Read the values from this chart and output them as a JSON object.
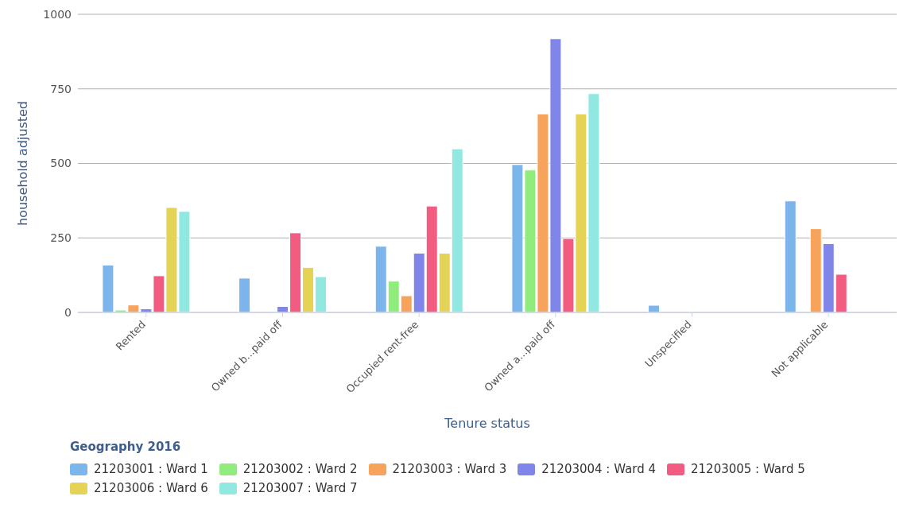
{
  "chart_data": {
    "type": "bar",
    "xlabel": "Tenure status",
    "ylabel": "household adjusted",
    "legend_title": "Geography 2016",
    "legend": "bottom",
    "grid": "y",
    "categories": [
      "Rented",
      "Owned b...paid off",
      "Occupied rent-free",
      "Owned a...paid off",
      "Unspecified",
      "Not applicable"
    ],
    "ylim": [
      0,
      1000
    ],
    "yticks": [
      0,
      250,
      500,
      750,
      1000
    ],
    "series": [
      {
        "name": "21203001 : Ward 1",
        "color": "#7cb5ec",
        "values": [
          159,
          115,
          222,
          496,
          24,
          374
        ]
      },
      {
        "name": "21203002 : Ward 2",
        "color": "#90ed7d",
        "values": [
          8,
          0,
          105,
          478,
          0,
          0
        ]
      },
      {
        "name": "21203003 : Ward 3",
        "color": "#f7a35c",
        "values": [
          25,
          0,
          56,
          666,
          0,
          281
        ]
      },
      {
        "name": "21203004 : Ward 4",
        "color": "#8085e9",
        "values": [
          12,
          20,
          199,
          918,
          0,
          231
        ]
      },
      {
        "name": "21203005 : Ward 5",
        "color": "#f15c80",
        "values": [
          123,
          267,
          357,
          248,
          0,
          128
        ]
      },
      {
        "name": "21203006 : Ward 6",
        "color": "#e4d354",
        "values": [
          352,
          151,
          199,
          666,
          0,
          0
        ]
      },
      {
        "name": "21203007 : Ward 7",
        "color": "#91e8e1",
        "values": [
          339,
          120,
          549,
          734,
          0,
          0
        ]
      }
    ]
  }
}
